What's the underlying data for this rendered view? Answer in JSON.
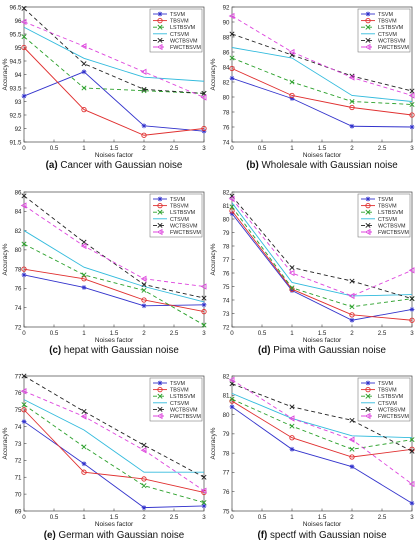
{
  "figure": {
    "captions": [
      {
        "letter": "(a)",
        "text": "Cancer with Gaussian noise"
      },
      {
        "letter": "(b)",
        "text": "Wholesale with Gaussian noise"
      },
      {
        "letter": "(c)",
        "text": "hepat with Gaussian noise"
      },
      {
        "letter": "(d)",
        "text": "Pima with Gaussian noise"
      },
      {
        "letter": "(e)",
        "text": "German with Gaussian noise"
      },
      {
        "letter": "(f)",
        "text": "spectf with Gaussian noise"
      }
    ]
  },
  "series_styles": [
    {
      "name": "TSVM",
      "color": "#3333cc",
      "dash": "",
      "marker": "star"
    },
    {
      "name": "TBSVM",
      "color": "#e03030",
      "dash": "",
      "marker": "circle"
    },
    {
      "name": "LSTBSVM",
      "color": "#2aa02a",
      "dash": "4,3",
      "marker": "x"
    },
    {
      "name": "CTSVM",
      "color": "#33bbdd",
      "dash": "",
      "marker": "none"
    },
    {
      "name": "WCTBSVM",
      "color": "#222222",
      "dash": "4,3",
      "marker": "x"
    },
    {
      "name": "FWCTBSVM",
      "color": "#dd44dd",
      "dash": "4,3",
      "marker": "tri"
    }
  ],
  "chart_data": [
    {
      "type": "line",
      "title": "Cancer with Gaussian noise",
      "xlabel": "Noises factor",
      "ylabel": "Accuracy%",
      "x": [
        0,
        1,
        2,
        3
      ],
      "xlim": [
        0,
        3
      ],
      "ylim": [
        91.5,
        96.5
      ],
      "xticks": [
        0,
        0.5,
        1,
        1.5,
        2,
        2.5,
        3
      ],
      "yticks": [
        91.5,
        92,
        92.5,
        93,
        93.5,
        94,
        94.5,
        95,
        95.5,
        96,
        96.5
      ],
      "legend": "top-right",
      "series": [
        {
          "name": "TSVM",
          "values": [
            93.2,
            94.1,
            92.1,
            91.9
          ]
        },
        {
          "name": "TBSVM",
          "values": [
            95.0,
            92.7,
            91.75,
            92.0
          ]
        },
        {
          "name": "LSTBSVM",
          "values": [
            95.4,
            93.5,
            93.4,
            93.3
          ]
        },
        {
          "name": "CTSVM",
          "values": [
            95.75,
            94.6,
            93.9,
            93.75
          ]
        },
        {
          "name": "WCTBSVM",
          "values": [
            96.45,
            94.4,
            93.45,
            93.3
          ]
        },
        {
          "name": "FWCTBSVM",
          "values": [
            95.95,
            95.05,
            94.1,
            93.15
          ]
        }
      ]
    },
    {
      "type": "line",
      "title": "Wholesale with Gaussian noise",
      "xlabel": "Noises factor",
      "ylabel": "Accuracy%",
      "x": [
        0,
        1,
        2,
        3
      ],
      "xlim": [
        0,
        3
      ],
      "ylim": [
        74,
        92
      ],
      "xticks": [
        0,
        0.5,
        1,
        1.5,
        2,
        2.5,
        3
      ],
      "yticks": [
        74,
        76,
        78,
        80,
        82,
        84,
        86,
        88,
        90,
        92
      ],
      "legend": "top-right",
      "series": [
        {
          "name": "TSVM",
          "values": [
            82.5,
            79.8,
            76.1,
            76.0
          ]
        },
        {
          "name": "TBSVM",
          "values": [
            83.8,
            80.2,
            78.6,
            77.6
          ]
        },
        {
          "name": "LSTBSVM",
          "values": [
            85.2,
            82.0,
            79.4,
            79.0
          ]
        },
        {
          "name": "CTSVM",
          "values": [
            86.6,
            85.2,
            80.2,
            79.4
          ]
        },
        {
          "name": "WCTBSVM",
          "values": [
            88.4,
            85.6,
            82.8,
            80.8
          ]
        },
        {
          "name": "FWCTBSVM",
          "values": [
            90.8,
            86.0,
            82.6,
            80.2
          ]
        }
      ]
    },
    {
      "type": "line",
      "title": "hepat with Gaussian noise",
      "xlabel": "Noises factor",
      "ylabel": "Accuracy%",
      "x": [
        0,
        1,
        2,
        3
      ],
      "xlim": [
        0,
        3
      ],
      "ylim": [
        72,
        86
      ],
      "xticks": [
        0,
        0.5,
        1,
        1.5,
        2,
        2.5,
        3
      ],
      "yticks": [
        72,
        74,
        76,
        78,
        80,
        82,
        84,
        86
      ],
      "legend": "top-right",
      "series": [
        {
          "name": "TSVM",
          "values": [
            77.4,
            76.1,
            74.2,
            74.3
          ]
        },
        {
          "name": "TBSVM",
          "values": [
            78.0,
            77.0,
            74.8,
            73.6
          ]
        },
        {
          "name": "LSTBSVM",
          "values": [
            80.6,
            77.4,
            75.8,
            72.2
          ]
        },
        {
          "name": "CTSVM",
          "values": [
            82.0,
            78.2,
            76.2,
            74.6
          ]
        },
        {
          "name": "WCTBSVM",
          "values": [
            85.6,
            80.8,
            76.4,
            75.0
          ]
        },
        {
          "name": "FWCTBSVM",
          "values": [
            84.6,
            80.4,
            77.0,
            76.2
          ]
        }
      ]
    },
    {
      "type": "line",
      "title": "Pima with Gaussian noise",
      "xlabel": "Noises factor",
      "ylabel": "Accuracy%",
      "x": [
        0,
        1,
        2,
        3
      ],
      "xlim": [
        0,
        3
      ],
      "ylim": [
        72,
        82
      ],
      "xticks": [
        0,
        0.5,
        1,
        1.5,
        2,
        2.5,
        3
      ],
      "yticks": [
        72,
        73,
        74,
        75,
        76,
        77,
        78,
        79,
        80,
        81,
        82
      ],
      "legend": "top-right",
      "series": [
        {
          "name": "TSVM",
          "values": [
            80.4,
            74.7,
            72.5,
            73.3
          ]
        },
        {
          "name": "TBSVM",
          "values": [
            80.6,
            74.8,
            72.9,
            72.5
          ]
        },
        {
          "name": "LSTBSVM",
          "values": [
            80.9,
            74.9,
            73.5,
            74.1
          ]
        },
        {
          "name": "CTSVM",
          "values": [
            81.2,
            75.3,
            74.3,
            74.4
          ]
        },
        {
          "name": "WCTBSVM",
          "values": [
            81.7,
            76.4,
            75.4,
            74.1
          ]
        },
        {
          "name": "FWCTBSVM",
          "values": [
            81.5,
            76.0,
            74.3,
            76.2
          ]
        }
      ]
    },
    {
      "type": "line",
      "title": "German with Gaussian noise",
      "xlabel": "Noises factor",
      "ylabel": "Accuracy%",
      "x": [
        0,
        1,
        2,
        3
      ],
      "xlim": [
        0,
        3
      ],
      "ylim": [
        69,
        77
      ],
      "xticks": [
        0,
        0.5,
        1,
        1.5,
        2,
        2.5,
        3
      ],
      "yticks": [
        69,
        70,
        71,
        72,
        73,
        74,
        75,
        76,
        77
      ],
      "legend": "top-right",
      "series": [
        {
          "name": "TSVM",
          "values": [
            74.3,
            71.8,
            69.2,
            69.3
          ]
        },
        {
          "name": "TBSVM",
          "values": [
            75.0,
            71.3,
            70.9,
            70.1
          ]
        },
        {
          "name": "LSTBSVM",
          "values": [
            75.3,
            72.8,
            70.5,
            69.5
          ]
        },
        {
          "name": "CTSVM",
          "values": [
            75.6,
            73.8,
            71.3,
            71.3
          ]
        },
        {
          "name": "WCTBSVM",
          "values": [
            77.0,
            74.9,
            72.9,
            71.0
          ]
        },
        {
          "name": "FWCTBSVM",
          "values": [
            76.1,
            74.6,
            72.6,
            70.2
          ]
        }
      ]
    },
    {
      "type": "line",
      "title": "spectf with Gaussian noise",
      "xlabel": "Noises factor",
      "ylabel": "Accuracy%",
      "x": [
        0,
        1,
        2,
        3
      ],
      "xlim": [
        0,
        3
      ],
      "ylim": [
        75,
        82
      ],
      "xticks": [
        0,
        0.5,
        1,
        1.5,
        2,
        2.5,
        3
      ],
      "yticks": [
        75,
        76,
        77,
        78,
        79,
        80,
        81,
        82
      ],
      "legend": "top-right",
      "series": [
        {
          "name": "TSVM",
          "values": [
            80.4,
            78.2,
            77.3,
            75.4
          ]
        },
        {
          "name": "TBSVM",
          "values": [
            80.7,
            78.8,
            77.8,
            78.2
          ]
        },
        {
          "name": "LSTBSVM",
          "values": [
            80.8,
            79.4,
            78.2,
            78.7
          ]
        },
        {
          "name": "CTSVM",
          "values": [
            81.1,
            79.8,
            78.9,
            78.8
          ]
        },
        {
          "name": "WCTBSVM",
          "values": [
            81.6,
            80.4,
            79.7,
            78.1
          ]
        },
        {
          "name": "FWCTBSVM",
          "values": [
            81.8,
            79.8,
            78.7,
            76.4
          ]
        }
      ]
    }
  ]
}
